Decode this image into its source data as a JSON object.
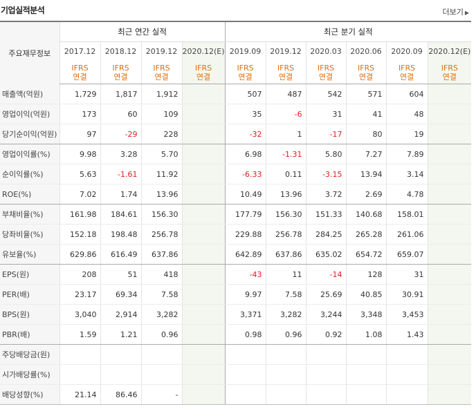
{
  "section": {
    "title": "기업실적분석",
    "more_label": "더보기"
  },
  "header": {
    "row_label": "주요재무정보",
    "annual_title": "최근 연간 실적",
    "quarter_title": "최근 분기 실적",
    "annual_periods": [
      "2017.12",
      "2018.12",
      "2019.12",
      "2020.12(E)"
    ],
    "quarter_periods": [
      "2019.09",
      "2019.12",
      "2020.03",
      "2020.06",
      "2020.09",
      "2020.12(E)"
    ],
    "std_line1": "IFRS",
    "std_line2": "연결"
  },
  "rows": [
    {
      "label": "매출액(억원)",
      "values": [
        "1,729",
        "1,817",
        "1,912",
        "",
        "507",
        "487",
        "542",
        "571",
        "604",
        ""
      ]
    },
    {
      "label": "영업이익(억원)",
      "values": [
        "173",
        "60",
        "109",
        "",
        "35",
        "-6",
        "31",
        "41",
        "48",
        ""
      ]
    },
    {
      "label": "당기순이익(억원)",
      "values": [
        "97",
        "-29",
        "228",
        "",
        "-32",
        "1",
        "-17",
        "80",
        "19",
        ""
      ]
    },
    {
      "label": "영업이익률(%)",
      "values": [
        "9.98",
        "3.28",
        "5.70",
        "",
        "6.98",
        "-1.31",
        "5.80",
        "7.27",
        "7.89",
        ""
      ]
    },
    {
      "label": "순이익률(%)",
      "values": [
        "5.63",
        "-1.61",
        "11.92",
        "",
        "-6.33",
        "0.11",
        "-3.15",
        "13.94",
        "3.14",
        ""
      ]
    },
    {
      "label": "ROE(%)",
      "values": [
        "7.02",
        "1.74",
        "13.96",
        "",
        "10.49",
        "13.96",
        "3.72",
        "2.69",
        "4.78",
        ""
      ]
    },
    {
      "label": "부채비율(%)",
      "values": [
        "161.98",
        "184.61",
        "156.30",
        "",
        "177.79",
        "156.30",
        "151.33",
        "140.68",
        "158.01",
        ""
      ]
    },
    {
      "label": "당좌비율(%)",
      "values": [
        "152.18",
        "198.48",
        "256.78",
        "",
        "229.88",
        "256.78",
        "284.25",
        "265.28",
        "261.06",
        ""
      ]
    },
    {
      "label": "유보율(%)",
      "values": [
        "629.86",
        "616.49",
        "637.86",
        "",
        "642.89",
        "637.86",
        "635.02",
        "654.72",
        "659.07",
        ""
      ]
    },
    {
      "label": "EPS(원)",
      "values": [
        "208",
        "51",
        "418",
        "",
        "-43",
        "11",
        "-14",
        "128",
        "31",
        ""
      ]
    },
    {
      "label": "PER(배)",
      "values": [
        "23.17",
        "69.34",
        "7.58",
        "",
        "9.97",
        "7.58",
        "25.69",
        "40.85",
        "30.91",
        ""
      ]
    },
    {
      "label": "BPS(원)",
      "values": [
        "3,040",
        "2,914",
        "3,282",
        "",
        "3,371",
        "3,282",
        "3,244",
        "3,348",
        "3,453",
        ""
      ]
    },
    {
      "label": "PBR(배)",
      "values": [
        "1.59",
        "1.21",
        "0.96",
        "",
        "0.98",
        "0.96",
        "0.92",
        "1.08",
        "1.43",
        ""
      ]
    },
    {
      "label": "주당배당금(원)",
      "values": [
        "",
        "",
        "",
        "",
        "",
        "",
        "",
        "",
        "",
        ""
      ]
    },
    {
      "label": "시가배당률(%)",
      "values": [
        "",
        "",
        "",
        "",
        "",
        "",
        "",
        "",
        "",
        ""
      ]
    },
    {
      "label": "배당성향(%)",
      "values": [
        "21.14",
        "86.46",
        "-",
        "",
        "",
        "",
        "",
        "",
        "",
        ""
      ]
    }
  ],
  "colors": {
    "negative": "#e21a1a",
    "standard": "#e36c0a",
    "estimate_bg": "#f3f7ef",
    "label_bg": "#f6f6f6"
  }
}
